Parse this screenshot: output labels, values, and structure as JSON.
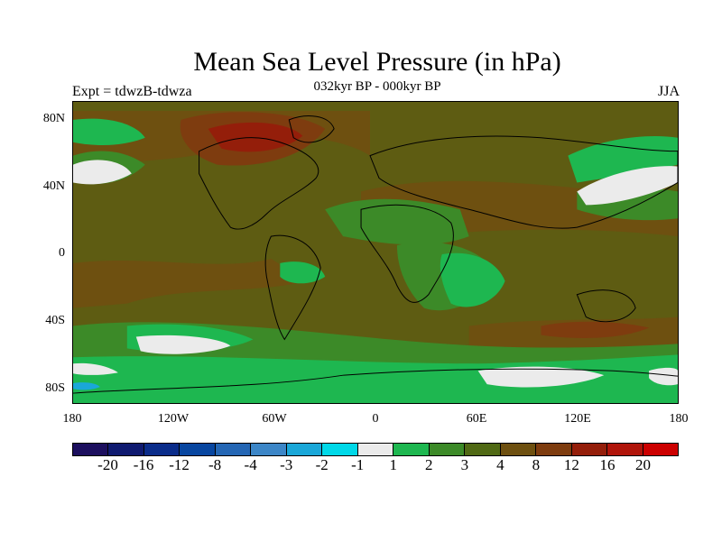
{
  "title": "Mean Sea Level Pressure (in hPa)",
  "subtitle": "032kyr BP - 000kyr BP",
  "left_label": "Expt = tdwzB-tdwza",
  "right_label": "JJA",
  "lat_labels": [
    "80N",
    "40N",
    "0",
    "40S",
    "80S"
  ],
  "lon_labels": [
    "180",
    "120W",
    "60W",
    "0",
    "60E",
    "120E",
    "180"
  ],
  "colorbar": {
    "labels": [
      "-20",
      "-16",
      "-12",
      "-8",
      "-4",
      "-3",
      "-2",
      "-1",
      "1",
      "2",
      "3",
      "4",
      "8",
      "12",
      "16",
      "20"
    ],
    "colors": [
      "#1c0f5e",
      "#0f1a70",
      "#0a2c8a",
      "#0846a0",
      "#2466b4",
      "#3c86c7",
      "#1aa7d8",
      "#00d8e8",
      "#ebebeb",
      "#1eb750",
      "#3c8a28",
      "#506914",
      "#6e5010",
      "#7e3c0f",
      "#941e0a",
      "#b0140a",
      "#cc0000"
    ]
  },
  "colors": {
    "background_field": "#5e5c12",
    "coastline": "#000000"
  }
}
